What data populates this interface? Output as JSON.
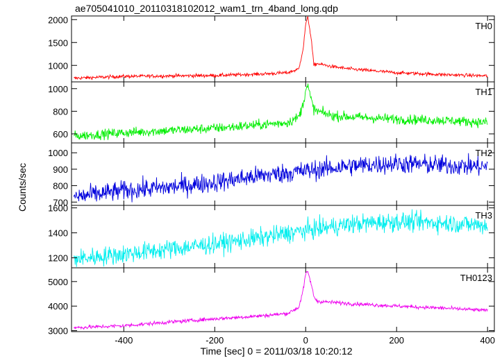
{
  "page": {
    "title": "ae705041010_20110318102012_wam1_trn_4band_long.qdp",
    "ylabel": "Counts/sec",
    "xlabel": "Time [sec] 0 = 2011/03/18 10:20:12"
  },
  "chart_data": {
    "type": "line",
    "title": "ae705041010_20110318102012_wam1_trn_4band_long.qdp",
    "xlabel": "Time [sec] 0 = 2011/03/18 10:20:12",
    "ylabel": "Counts/sec",
    "xlim": [
      -515,
      415
    ],
    "xticks": [
      -400,
      -200,
      0,
      200,
      400
    ],
    "grid": false,
    "panels": [
      {
        "name": "TH0",
        "color": "#ff0000",
        "ylim": [
          640,
          2080
        ],
        "yticks": [
          1000,
          1500,
          2000
        ],
        "x": [
          -510,
          -400,
          -300,
          -200,
          -100,
          -40,
          -15,
          -5,
          0,
          5,
          12,
          18,
          25,
          60,
          100,
          200,
          300,
          400
        ],
        "y": [
          720,
          760,
          770,
          780,
          810,
          840,
          920,
          1400,
          1900,
          2050,
          1600,
          1000,
          1040,
          970,
          920,
          840,
          800,
          770
        ],
        "noise": 35
      },
      {
        "name": "TH1",
        "color": "#00ee00",
        "ylim": [
          520,
          1060
        ],
        "yticks": [
          600,
          800,
          1000
        ],
        "x": [
          -510,
          -400,
          -300,
          -200,
          -100,
          -40,
          -15,
          -5,
          0,
          5,
          12,
          18,
          25,
          60,
          100,
          200,
          300,
          400
        ],
        "y": [
          580,
          610,
          630,
          650,
          680,
          700,
          750,
          870,
          1000,
          1020,
          900,
          820,
          800,
          760,
          750,
          730,
          720,
          700
        ],
        "noise": 40
      },
      {
        "name": "TH2",
        "color": "#0000dd",
        "ylim": [
          680,
          1060
        ],
        "yticks": [
          700,
          800,
          900,
          1000
        ],
        "x": [
          -510,
          -400,
          -300,
          -200,
          -100,
          0,
          100,
          200,
          300,
          400
        ],
        "y": [
          730,
          770,
          790,
          820,
          860,
          890,
          920,
          935,
          925,
          915
        ],
        "noise": 55
      },
      {
        "name": "TH3",
        "color": "#00eeee",
        "ylim": [
          1120,
          1620
        ],
        "yticks": [
          1200,
          1400,
          1600
        ],
        "x": [
          -510,
          -400,
          -300,
          -200,
          -100,
          0,
          100,
          200,
          300,
          400
        ],
        "y": [
          1190,
          1230,
          1270,
          1310,
          1360,
          1420,
          1470,
          1490,
          1480,
          1460
        ],
        "noise": 70
      },
      {
        "name": "TH0123",
        "color": "#ee00ee",
        "ylim": [
          2960,
          5560
        ],
        "yticks": [
          3000,
          4000,
          5000
        ],
        "x": [
          -510,
          -400,
          -300,
          -200,
          -100,
          -40,
          -15,
          -5,
          0,
          5,
          12,
          18,
          25,
          60,
          100,
          200,
          300,
          400
        ],
        "y": [
          3120,
          3200,
          3350,
          3480,
          3600,
          3700,
          3950,
          4700,
          5300,
          5400,
          4900,
          4400,
          4200,
          4150,
          4100,
          4000,
          3920,
          3820
        ],
        "noise": 70
      }
    ]
  }
}
